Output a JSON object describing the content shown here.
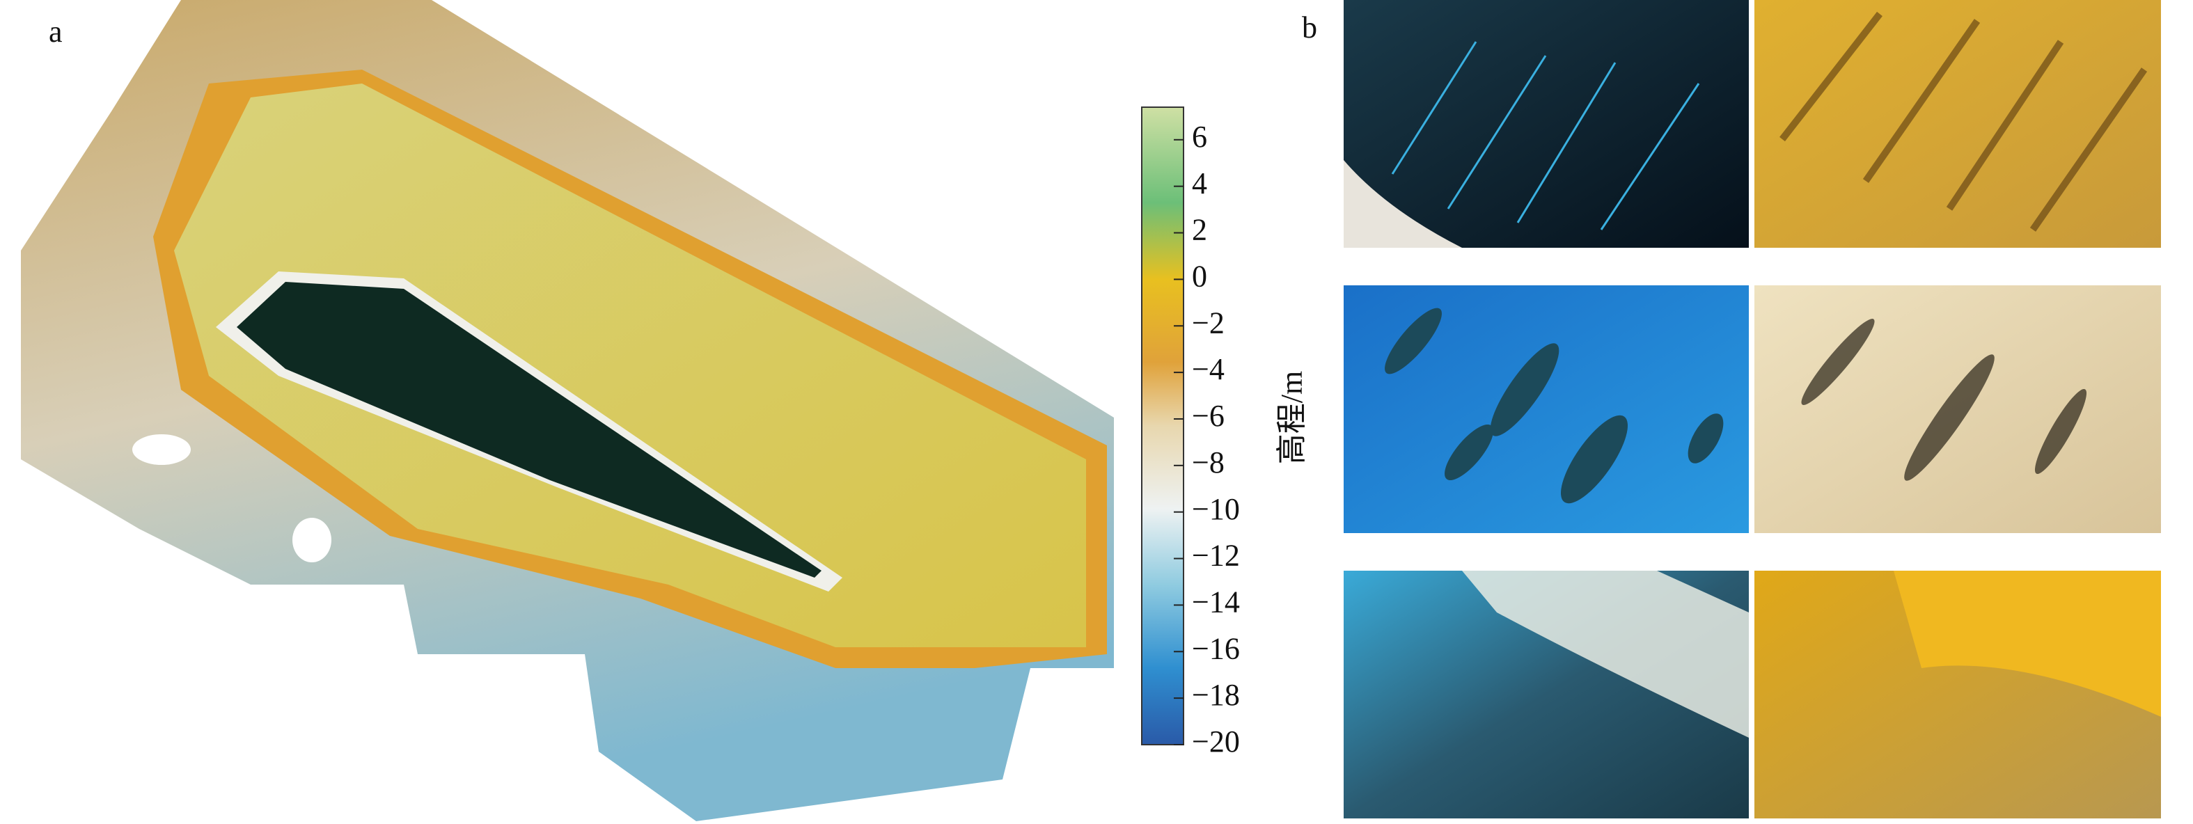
{
  "panels": {
    "a": {
      "label": "a"
    },
    "b": {
      "label": "b"
    }
  },
  "colorbar": {
    "label": "高程/m",
    "lim": [
      -20,
      7.4
    ],
    "ticks": [
      6,
      4,
      2,
      0,
      {
        "value": -2,
        "label": "−2"
      },
      {
        "value": -4,
        "label": "−4"
      },
      {
        "value": -6,
        "label": "−6"
      },
      {
        "value": -8,
        "label": "−8"
      },
      {
        "value": -10,
        "label": "−10"
      },
      {
        "value": -12,
        "label": "−12"
      },
      {
        "value": -14,
        "label": "−14"
      },
      {
        "value": -16,
        "label": "−16"
      },
      {
        "value": -18,
        "label": "−18"
      },
      {
        "value": -20,
        "label": "−20"
      }
    ]
  }
}
